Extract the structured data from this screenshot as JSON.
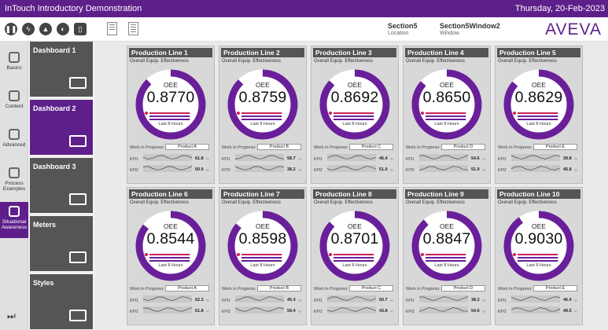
{
  "app": {
    "title": "InTouch Introductory Demonstration",
    "date": "Thursday, 20-Feb-2023"
  },
  "toolbar": {
    "section": {
      "value": "Section5",
      "label": "Location"
    },
    "window": {
      "value": "Section5Window2",
      "label": "Window"
    },
    "logo": "AVEVA"
  },
  "rail": [
    {
      "label": "Basics",
      "icon": "lightbulb-icon"
    },
    {
      "label": "Content",
      "icon": "content-icon"
    },
    {
      "label": "Advanced",
      "icon": "advanced-icon"
    },
    {
      "label": "Process Examples",
      "icon": "process-icon"
    },
    {
      "label": "Situational Awareness",
      "icon": "trend-icon",
      "active": true
    }
  ],
  "dashboards": [
    {
      "label": "Dashboard 1",
      "icon": "dashboard-icon"
    },
    {
      "label": "Dashboard 2",
      "icon": "dashboard-icon",
      "active": true
    },
    {
      "label": "Dashboard 3",
      "icon": "dashboard-icon"
    },
    {
      "label": "Meters",
      "icon": "meters-icon"
    },
    {
      "label": "Styles",
      "icon": "styles-icon"
    }
  ],
  "common": {
    "subtitle": "Overall Equip. Effectiveness",
    "oee": "OEE",
    "last": "Last 8 Hours",
    "wip": "Work in Progress:",
    "kpi1": "KPI1",
    "kpi2": "KPI2"
  },
  "lines": [
    {
      "name": "Production Line 1",
      "oee": "0.8770",
      "frac": 0.877,
      "product": "Product A",
      "kpi1": "61.8",
      "kpi2": "50.9"
    },
    {
      "name": "Production Line 2",
      "oee": "0.8759",
      "frac": 0.8759,
      "product": "Product B",
      "kpi1": "58.7",
      "kpi2": "38.2"
    },
    {
      "name": "Production Line 3",
      "oee": "0.8692",
      "frac": 0.8692,
      "product": "Product C",
      "kpi1": "46.4",
      "kpi2": "51.0"
    },
    {
      "name": "Production Line 4",
      "oee": "0.8650",
      "frac": 0.865,
      "product": "Product D",
      "kpi1": "54.6",
      "kpi2": "51.9"
    },
    {
      "name": "Production Line 5",
      "oee": "0.8629",
      "frac": 0.8629,
      "product": "Product E",
      "kpi1": "39.8",
      "kpi2": "45.8"
    },
    {
      "name": "Production Line 6",
      "oee": "0.8544",
      "frac": 0.8544,
      "product": "Product A",
      "kpi1": "62.3",
      "kpi2": "61.8"
    },
    {
      "name": "Production Line 7",
      "oee": "0.8598",
      "frac": 0.8598,
      "product": "Product B",
      "kpi1": "45.4",
      "kpi2": "59.4"
    },
    {
      "name": "Production Line 8",
      "oee": "0.8701",
      "frac": 0.8701,
      "product": "Product C",
      "kpi1": "50.7",
      "kpi2": "43.8"
    },
    {
      "name": "Production Line 9",
      "oee": "0.8847",
      "frac": 0.8847,
      "product": "Product D",
      "kpi1": "38.2",
      "kpi2": "54.6"
    },
    {
      "name": "Production Line 10",
      "oee": "0.9030",
      "frac": 0.903,
      "product": "Product E",
      "kpi1": "46.4",
      "kpi2": "49.5"
    }
  ],
  "colors": {
    "accent": "#5e1f8a",
    "gauge_fill": "#6a1f9a",
    "gauge_track": "#ffffff",
    "bar_red": "#cc2255"
  }
}
